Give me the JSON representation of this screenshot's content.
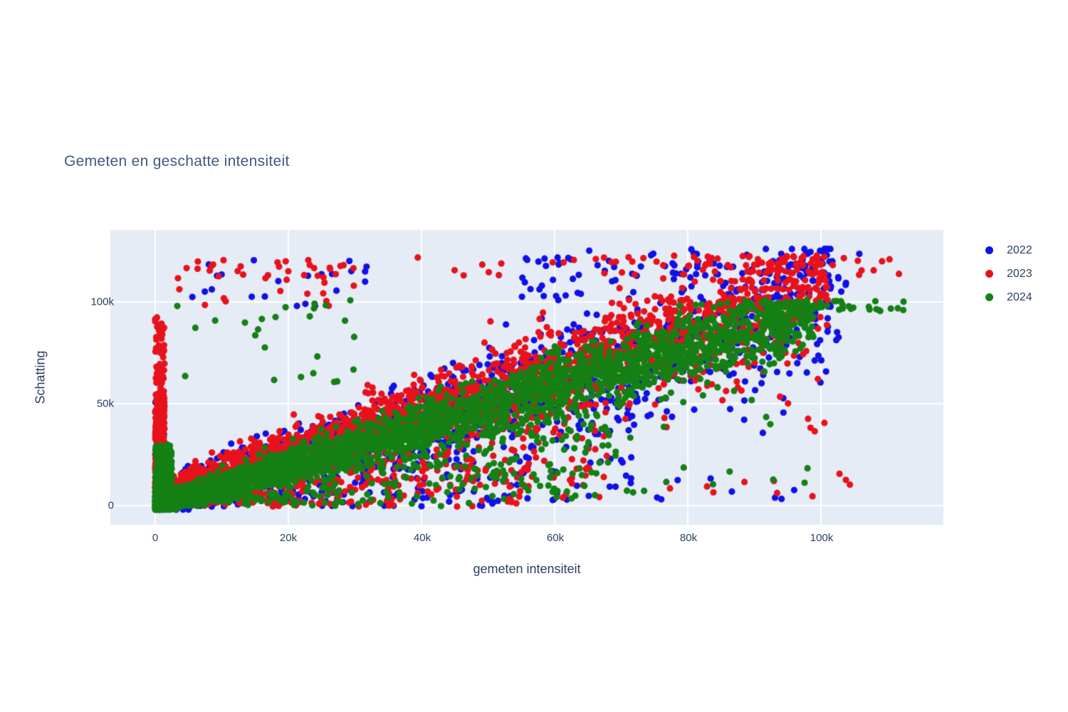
{
  "chart_data": {
    "type": "scatter",
    "title": "Gemeten en geschatte intensiteit",
    "xlabel": "gemeten intensiteit",
    "ylabel": "Schatting",
    "x_tick_labels": [
      "0",
      "20k",
      "40k",
      "60k",
      "80k",
      "100k"
    ],
    "y_tick_labels": [
      "0",
      "50k",
      "100k"
    ],
    "x_ticks": [
      0,
      20000,
      40000,
      60000,
      80000,
      100000
    ],
    "y_ticks": [
      0,
      50000,
      100000
    ],
    "x_range": [
      -6700,
      118400
    ],
    "y_range": [
      -9400,
      135300
    ],
    "plot_bg": "#e5ecf6",
    "grid_color": "#ffffff",
    "text_color": "#2a3f5f",
    "legend_position": "outside-top-right",
    "grid": true,
    "marker_radius_px": 4.6,
    "seed": 20,
    "series": [
      {
        "name": "2022",
        "color": "#1010e8",
        "description": "blue; scattered along diagonal y≈x with wide spread, top clusters 100k-126k at x 55k-106k, outliers near x=0 and below band",
        "clusters": [
          {
            "type": "diagonal",
            "n": 1300,
            "xMax": 103000,
            "skew": 1.3,
            "slope": 1.0,
            "intercept": 2500,
            "noiseBase": 4000,
            "noiseProp": 0.14,
            "yMax": 126000
          },
          {
            "type": "below",
            "n": 240,
            "x": [
              1500,
              72000
            ],
            "yRel": [
              0.04,
              0.8
            ]
          },
          {
            "type": "box",
            "n": 80,
            "x": [
              55000,
              106000
            ],
            "y": [
              100000,
              126000
            ]
          },
          {
            "type": "box",
            "n": 22,
            "x": [
              4000,
              32000
            ],
            "y": [
              98000,
              122000
            ]
          },
          {
            "type": "box",
            "n": 70,
            "x": [
              0,
              1500
            ],
            "y": [
              0,
              52000
            ]
          },
          {
            "type": "box",
            "n": 16,
            "x": [
              2000,
              55000
            ],
            "y": [
              -500,
              2500
            ]
          },
          {
            "type": "box",
            "n": 10,
            "x": [
              60000,
              100000
            ],
            "y": [
              35000,
              52000
            ]
          },
          {
            "type": "box",
            "n": 8,
            "x": [
              75000,
              100000
            ],
            "y": [
              3000,
              15000
            ]
          }
        ]
      },
      {
        "name": "2023",
        "color": "#e8121c",
        "description": "red; diagonal band sitting above green, dense vertical stripe at x=0 from 0-53k (sparser to 93k), quantized top rows 106k-122k, scattered outliers",
        "clusters": [
          {
            "type": "diagonal",
            "n": 2200,
            "xMax": 101000,
            "skew": 1.3,
            "slope": 1.02,
            "intercept": 5000,
            "noiseBase": 3500,
            "noiseProp": 0.12,
            "capRowsStart": 105000,
            "capRows": [
              106500,
              110500,
              114500,
              118500,
              122000
            ],
            "yMax": 123000
          },
          {
            "type": "below",
            "n": 330,
            "x": [
              1500,
              68000
            ],
            "yRel": [
              0.03,
              0.8
            ]
          },
          {
            "type": "box",
            "n": 430,
            "x": [
              0,
              1400
            ],
            "y": [
              -1000,
              53000
            ]
          },
          {
            "type": "box",
            "n": 60,
            "x": [
              0,
              1400
            ],
            "y": [
              53000,
              93000
            ]
          },
          {
            "type": "box",
            "n": 55,
            "x": [
              15000,
              112000
            ],
            "y": [
              113000,
              122000
            ]
          },
          {
            "type": "box",
            "n": 30,
            "x": [
              3000,
              30000
            ],
            "y": [
              95000,
              122000
            ]
          },
          {
            "type": "box",
            "n": 25,
            "x": [
              2000,
              56000
            ],
            "y": [
              -500,
              2500
            ]
          },
          {
            "type": "box",
            "n": 12,
            "x": [
              60000,
              105000
            ],
            "y": [
              35000,
              52000
            ]
          },
          {
            "type": "box",
            "n": 10,
            "x": [
              70000,
              106000
            ],
            "y": [
              4000,
              16000
            ]
          }
        ]
      },
      {
        "name": "2024",
        "color": "#158015",
        "description": "green; densest core along diagonal slightly below red, plateau at ~98-100k for x>95k extending to 113k, dense mass near origin",
        "clusters": [
          {
            "type": "diagonal",
            "n": 2900,
            "xMax": 99000,
            "skew": 1.45,
            "slope": 0.96,
            "intercept": 300,
            "noiseBase": 2300,
            "noiseProp": 0.085,
            "plateauStart": 96500,
            "plateauY": 98300,
            "plateauNoise": 1300,
            "yMax": 103000
          },
          {
            "type": "below",
            "n": 300,
            "x": [
              1500,
              70000
            ],
            "yRel": [
              0.05,
              0.75
            ]
          },
          {
            "type": "box",
            "n": 330,
            "x": [
              0,
              2500
            ],
            "y": [
              0,
              30000
            ]
          },
          {
            "type": "box",
            "n": 35,
            "x": [
              93000,
              113000
            ],
            "y": [
              95000,
              100500
            ]
          },
          {
            "type": "box",
            "n": 25,
            "x": [
              3000,
              30000
            ],
            "y": [
              60000,
              101000
            ]
          },
          {
            "type": "box",
            "n": 20,
            "x": [
              2000,
              50000
            ],
            "y": [
              -500,
              2500
            ]
          },
          {
            "type": "box",
            "n": 14,
            "x": [
              60000,
              98000
            ],
            "y": [
              30000,
              55000
            ]
          },
          {
            "type": "box",
            "n": 10,
            "x": [
              70000,
              100000
            ],
            "y": [
              5000,
              20000
            ]
          }
        ]
      }
    ]
  }
}
